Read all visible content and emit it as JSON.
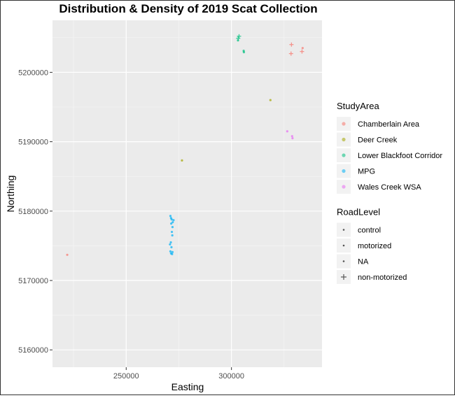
{
  "chart_data": {
    "type": "scatter",
    "title": "Distribution & Density of 2019 Scat Collection",
    "xlabel": "Easting",
    "ylabel": "Northing",
    "xlim": [
      215000,
      343000
    ],
    "ylim": [
      5157500,
      5207500
    ],
    "xticks": [
      250000,
      300000
    ],
    "xtick_labels": [
      "250000",
      "300000"
    ],
    "yticks": [
      5160000,
      5170000,
      5180000,
      5190000,
      5200000
    ],
    "ytick_labels": [
      "5160000",
      "5170000",
      "5180000",
      "5190000",
      "5200000"
    ],
    "grid": true,
    "legend_position": "right",
    "legends": [
      {
        "title": "StudyArea",
        "entries": [
          {
            "label": "Chamberlain Area",
            "color": "#F8766D"
          },
          {
            "label": "Deer Creek",
            "color": "#A3A500"
          },
          {
            "label": "Lower Blackfoot Corridor",
            "color": "#00BF7D"
          },
          {
            "label": "MPG",
            "color": "#00B0F6"
          },
          {
            "label": "Wales Creek WSA",
            "color": "#E76BF3"
          }
        ]
      },
      {
        "title": "RoadLevel",
        "entries": [
          {
            "label": "control",
            "shape": "dot"
          },
          {
            "label": "motorized",
            "shape": "dot"
          },
          {
            "label": "NA",
            "shape": "dot"
          },
          {
            "label": "non-motorized",
            "shape": "plus"
          }
        ]
      }
    ],
    "points": [
      {
        "x": 328500,
        "y": 5204000,
        "area": "Chamberlain Area",
        "road": "non-motorized"
      },
      {
        "x": 328300,
        "y": 5202700,
        "area": "Chamberlain Area",
        "road": "non-motorized"
      },
      {
        "x": 333500,
        "y": 5203000,
        "area": "Chamberlain Area",
        "road": "non-motorized"
      },
      {
        "x": 333800,
        "y": 5203500,
        "area": "Chamberlain Area",
        "road": "control"
      },
      {
        "x": 222000,
        "y": 5173700,
        "area": "Chamberlain Area",
        "road": "motorized"
      },
      {
        "x": 276500,
        "y": 5187300,
        "area": "Deer Creek",
        "road": "motorized"
      },
      {
        "x": 303200,
        "y": 5204900,
        "area": "Lower Blackfoot Corridor",
        "road": "non-motorized"
      },
      {
        "x": 303600,
        "y": 5205200,
        "area": "Lower Blackfoot Corridor",
        "road": "non-motorized"
      },
      {
        "x": 305800,
        "y": 5203100,
        "area": "Lower Blackfoot Corridor",
        "road": "control"
      },
      {
        "x": 305900,
        "y": 5202900,
        "area": "Lower Blackfoot Corridor",
        "road": "motorized"
      },
      {
        "x": 303100,
        "y": 5204600,
        "area": "Lower Blackfoot Corridor",
        "road": "control"
      },
      {
        "x": 318500,
        "y": 5196000,
        "area": "Deer Creek",
        "road": "motorized"
      },
      {
        "x": 326500,
        "y": 5191500,
        "area": "Wales Creek WSA",
        "road": "control"
      },
      {
        "x": 328800,
        "y": 5190800,
        "area": "Wales Creek WSA",
        "road": "motorized"
      },
      {
        "x": 329000,
        "y": 5190500,
        "area": "Wales Creek WSA",
        "road": "control"
      },
      {
        "x": 271000,
        "y": 5179300,
        "area": "MPG",
        "road": "motorized"
      },
      {
        "x": 271300,
        "y": 5179000,
        "area": "MPG",
        "road": "control"
      },
      {
        "x": 271600,
        "y": 5178800,
        "area": "MPG",
        "road": "motorized"
      },
      {
        "x": 272100,
        "y": 5178400,
        "area": "MPG",
        "road": "control"
      },
      {
        "x": 272500,
        "y": 5178700,
        "area": "MPG",
        "road": "motorized"
      },
      {
        "x": 271400,
        "y": 5178200,
        "area": "MPG",
        "road": "control"
      },
      {
        "x": 272000,
        "y": 5177700,
        "area": "MPG",
        "road": "motorized"
      },
      {
        "x": 271700,
        "y": 5177000,
        "area": "MPG",
        "road": "control"
      },
      {
        "x": 271900,
        "y": 5176500,
        "area": "MPG",
        "road": "motorized"
      },
      {
        "x": 271200,
        "y": 5175500,
        "area": "MPG",
        "road": "control"
      },
      {
        "x": 270800,
        "y": 5175200,
        "area": "MPG",
        "road": "motorized"
      },
      {
        "x": 271500,
        "y": 5174800,
        "area": "MPG",
        "road": "control"
      },
      {
        "x": 271000,
        "y": 5174200,
        "area": "MPG",
        "road": "motorized"
      },
      {
        "x": 271300,
        "y": 5173900,
        "area": "MPG",
        "road": "control"
      },
      {
        "x": 271800,
        "y": 5173800,
        "area": "MPG",
        "road": "motorized"
      },
      {
        "x": 272000,
        "y": 5174100,
        "area": "MPG",
        "road": "control"
      }
    ]
  }
}
